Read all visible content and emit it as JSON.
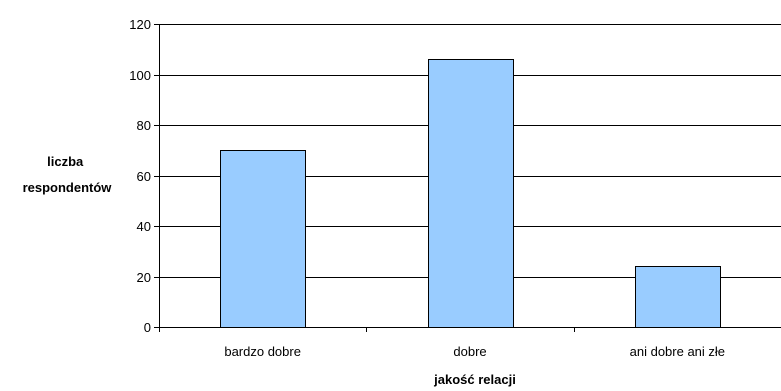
{
  "chart_data": {
    "type": "bar",
    "categories": [
      "bardzo dobre",
      "dobre",
      "ani dobre ani złe"
    ],
    "values": [
      70,
      106,
      24
    ],
    "title": "",
    "xlabel": "jakość relacji",
    "ylabel_lines": [
      "liczba",
      "respondentów"
    ],
    "ylim": [
      0,
      120
    ],
    "yticks": [
      0,
      20,
      40,
      60,
      80,
      100,
      120
    ],
    "grid": true,
    "legend": "none",
    "colors": {
      "bar_fill": "#99CCFF",
      "bar_stroke": "#000000",
      "grid": "#000000",
      "axis": "#000000"
    }
  }
}
